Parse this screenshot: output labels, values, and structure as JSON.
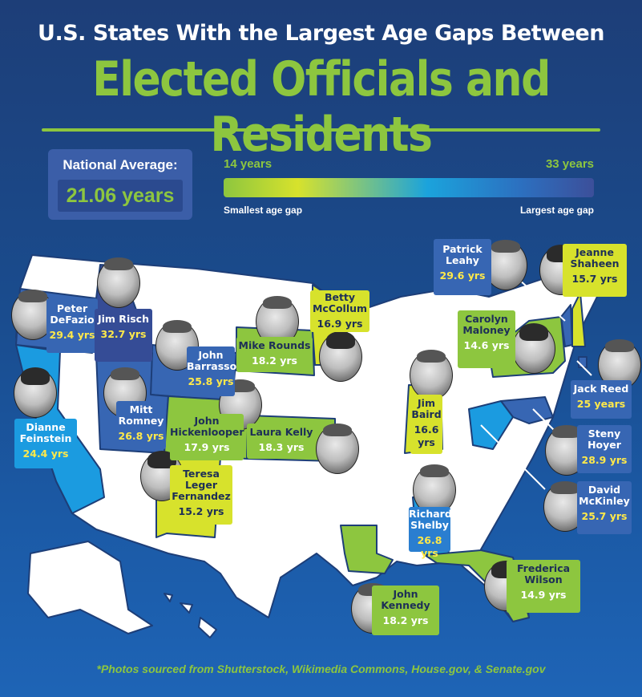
{
  "title_line1": "U.S. States With the Largest Age Gaps Between",
  "title_line2": "Elected Officials and Residents",
  "national_average": {
    "label": "National Average:",
    "value": "21.06 years"
  },
  "legend": {
    "min_label": "14 years",
    "max_label": "33 years",
    "smallest_label": "Smallest age gap",
    "largest_label": "Largest age gap",
    "min_value": 14,
    "max_value": 33,
    "colors": [
      "#8dc63f",
      "#d7e22c",
      "#1ba3dc",
      "#2c70c0",
      "#3c4f9a"
    ]
  },
  "officials": [
    {
      "name": "Peter DeFazio",
      "gap": "29.4 yrs",
      "state": "Oregon",
      "value": 29.4
    },
    {
      "name": "Jim Risch",
      "gap": "32.7 yrs",
      "state": "Idaho",
      "value": 32.7
    },
    {
      "name": "John Barrasso",
      "gap": "25.8 yrs",
      "state": "Wyoming",
      "value": 25.8
    },
    {
      "name": "Mike Rounds",
      "gap": "18.2 yrs",
      "state": "South Dakota",
      "value": 18.2
    },
    {
      "name": "Betty McCollum",
      "gap": "16.9 yrs",
      "state": "Minnesota",
      "value": 16.9
    },
    {
      "name": "Dianne Feinstein",
      "gap": "24.4 yrs",
      "state": "California",
      "value": 24.4
    },
    {
      "name": "Mitt Romney",
      "gap": "26.8 yrs",
      "state": "Utah",
      "value": 26.8
    },
    {
      "name": "John Hickenlooper",
      "gap": "17.9 yrs",
      "state": "Colorado",
      "value": 17.9
    },
    {
      "name": "Laura Kelly",
      "gap": "18.3 yrs",
      "state": "Kansas",
      "value": 18.3
    },
    {
      "name": "Teresa Leger Fernandez",
      "gap": "15.2 yrs",
      "state": "New Mexico",
      "value": 15.2
    },
    {
      "name": "Jim Baird",
      "gap": "16.6 yrs",
      "state": "Indiana",
      "value": 16.6
    },
    {
      "name": "Richard Shelby",
      "gap": "26.8 yrs",
      "state": "Alabama",
      "value": 26.8
    },
    {
      "name": "John Kennedy",
      "gap": "18.2 yrs",
      "state": "Louisiana",
      "value": 18.2
    },
    {
      "name": "Frederica Wilson",
      "gap": "14.9 yrs",
      "state": "Florida",
      "value": 14.9
    },
    {
      "name": "Patrick Leahy",
      "gap": "29.6 yrs",
      "state": "Vermont",
      "value": 29.6
    },
    {
      "name": "Jeanne Shaheen",
      "gap": "15.7 yrs",
      "state": "New Hampshire",
      "value": 15.7
    },
    {
      "name": "Carolyn Maloney",
      "gap": "14.6 yrs",
      "state": "New York",
      "value": 14.6
    },
    {
      "name": "Jack Reed",
      "gap": "25 years",
      "state": "Rhode Island",
      "value": 25
    },
    {
      "name": "Steny Hoyer",
      "gap": "28.9 yrs",
      "state": "Maryland",
      "value": 28.9
    },
    {
      "name": "David McKinley",
      "gap": "25.7 yrs",
      "state": "West Virginia",
      "value": 25.7
    }
  ],
  "footnote": "*Photos sourced from Shutterstock, Wikimedia Commons, House.gov, & Senate.gov"
}
